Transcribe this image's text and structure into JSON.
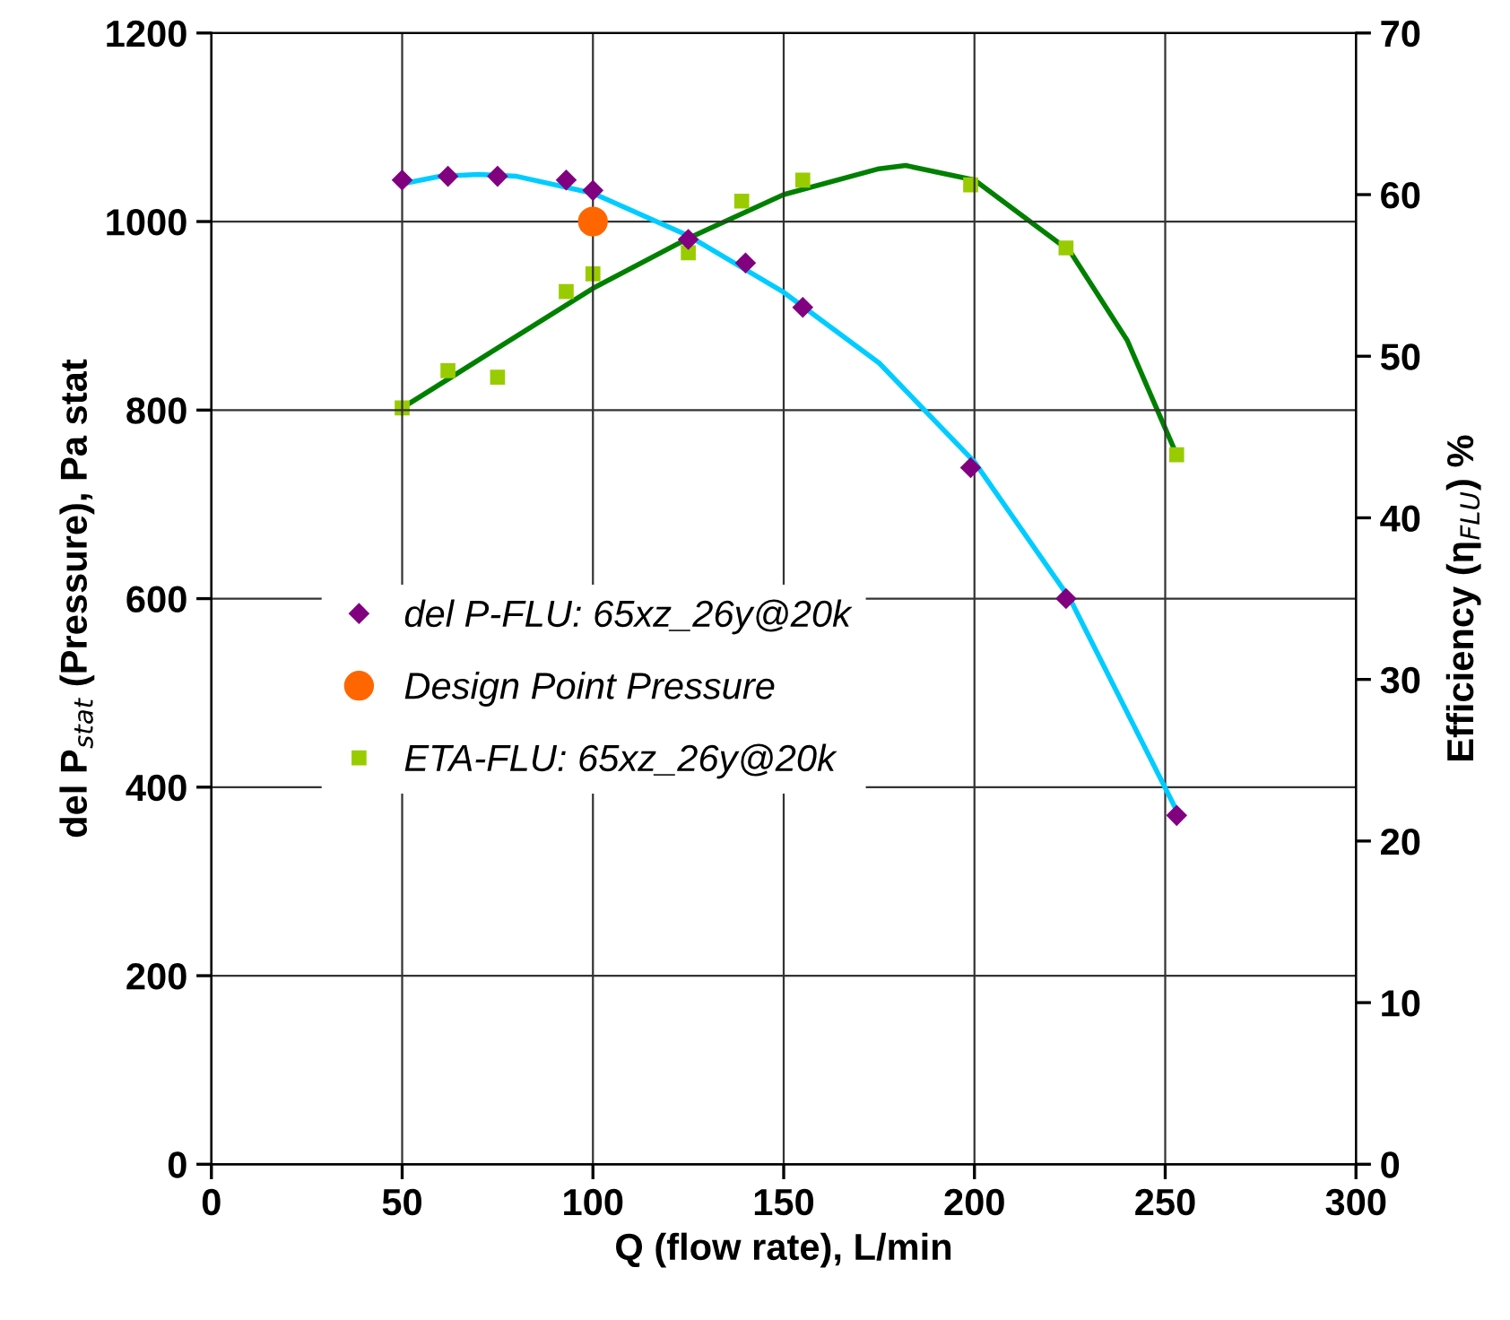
{
  "chart_data": {
    "type": "scatter",
    "xlabel": "Q (flow rate), L/min",
    "ylabel": "del P$_{stat}$ (Pressure), Pa stat",
    "y2label": "Efficiency (η$_{FLU}$) %",
    "xlim": [
      0,
      300
    ],
    "xticks": [
      0,
      50,
      100,
      150,
      200,
      250,
      300
    ],
    "ylim": [
      0,
      1200
    ],
    "yticks": [
      0,
      200,
      400,
      600,
      800,
      1000,
      1200
    ],
    "y2lim": [
      0,
      70
    ],
    "y2ticks": [
      0,
      10,
      20,
      30,
      40,
      50,
      60,
      70
    ],
    "grid": true,
    "legend": "left",
    "series": [
      {
        "type": "line",
        "color": "#00ccff",
        "x": [
          50,
          60,
          70,
          80,
          100,
          125,
          150,
          175,
          200,
          225,
          253
        ],
        "values": [
          1040,
          1048,
          1050,
          1048,
          1030,
          985,
          925,
          850,
          745,
          600,
          375
        ]
      },
      {
        "type": "line",
        "axis": "y2",
        "color": "#008000",
        "x": [
          50,
          75,
          100,
          125,
          150,
          175,
          182,
          200,
          225,
          240,
          253
        ],
        "values": [
          46.8,
          50.5,
          54.2,
          57.3,
          60.0,
          61.6,
          61.8,
          60.9,
          56.5,
          51,
          43.9
        ]
      },
      {
        "name": "del P-FLU: 65xz_26y@20k",
        "marker": "diamond",
        "color": "#800080",
        "x": [
          50,
          62,
          75,
          93,
          100,
          125,
          140,
          155,
          199,
          224,
          253
        ],
        "values": [
          1044,
          1048,
          1048,
          1044,
          1033,
          981,
          956,
          909,
          739,
          600,
          370
        ]
      },
      {
        "name": "Design Point Pressure",
        "marker": "circle",
        "color": "#ff6600",
        "x": [
          100
        ],
        "values": [
          1000
        ]
      },
      {
        "name": "ETA-FLU: 65xz_26y@20k",
        "marker": "square",
        "axis": "y2",
        "color": "#99cc00",
        "x": [
          50,
          62,
          75,
          93,
          100,
          125,
          139,
          155,
          199,
          224,
          253
        ],
        "values": [
          46.8,
          49.1,
          48.7,
          54.0,
          55.1,
          56.4,
          59.6,
          60.9,
          60.6,
          56.7,
          43.9
        ]
      }
    ]
  }
}
